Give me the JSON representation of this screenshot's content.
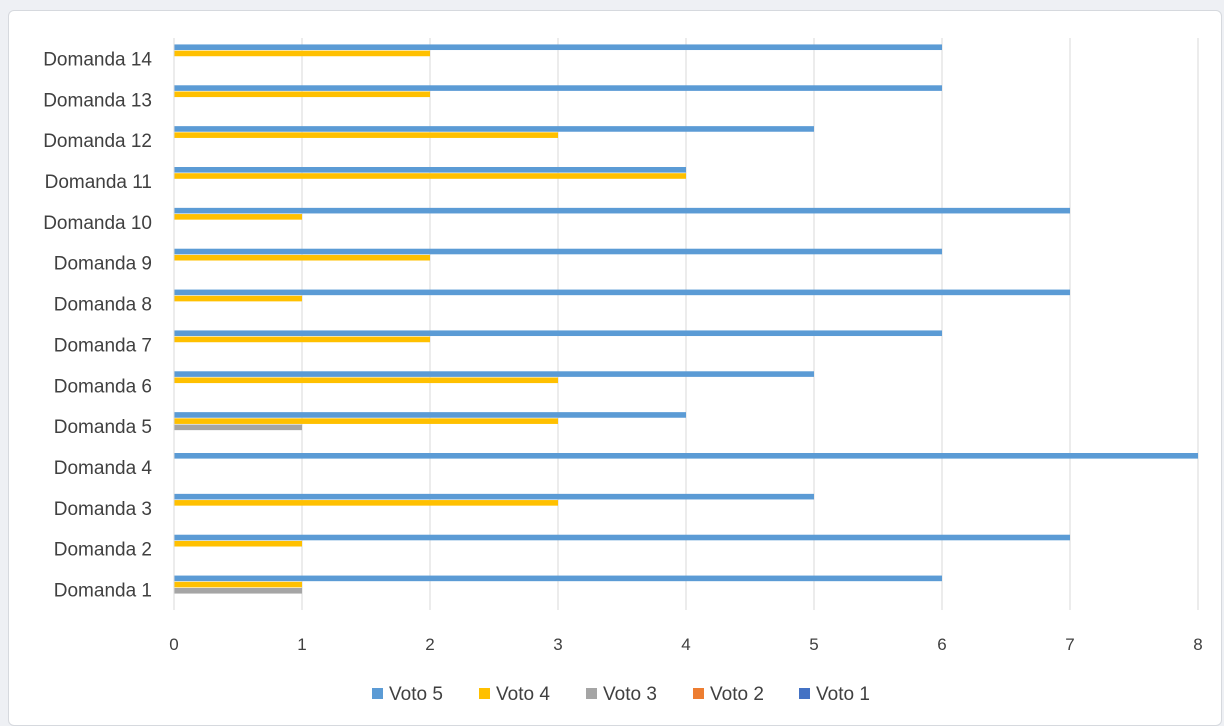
{
  "chart_data": {
    "type": "bar",
    "orientation": "horizontal",
    "categories": [
      "Domanda 1",
      "Domanda 2",
      "Domanda 3",
      "Domanda 4",
      "Domanda 5",
      "Domanda 6",
      "Domanda 7",
      "Domanda 8",
      "Domanda 9",
      "Domanda 10",
      "Domanda 11",
      "Domanda 12",
      "Domanda 13",
      "Domanda 14"
    ],
    "series": [
      {
        "name": "Voto 5",
        "color": "#5b9bd5",
        "values": [
          6,
          7,
          5,
          8,
          4,
          5,
          6,
          7,
          6,
          7,
          4,
          5,
          6,
          6
        ]
      },
      {
        "name": "Voto 4",
        "color": "#ffc000",
        "values": [
          1,
          1,
          3,
          0,
          3,
          3,
          2,
          1,
          2,
          1,
          4,
          3,
          2,
          2
        ]
      },
      {
        "name": "Voto 3",
        "color": "#a5a5a5",
        "values": [
          1,
          0,
          0,
          0,
          1,
          0,
          0,
          0,
          0,
          0,
          0,
          0,
          0,
          0
        ]
      },
      {
        "name": "Voto 2",
        "color": "#ed7d31",
        "values": [
          0,
          0,
          0,
          0,
          0,
          0,
          0,
          0,
          0,
          0,
          0,
          0,
          0,
          0
        ]
      },
      {
        "name": "Voto 1",
        "color": "#4472c4",
        "values": [
          0,
          0,
          0,
          0,
          0,
          0,
          0,
          0,
          0,
          0,
          0,
          0,
          0,
          0
        ]
      }
    ],
    "xlim": [
      0,
      8
    ],
    "xticks": [
      "0",
      "1",
      "2",
      "3",
      "4",
      "5",
      "6",
      "7",
      "8"
    ],
    "grid": "vertical",
    "legend": "bottom",
    "title": "",
    "xlabel": "",
    "ylabel": ""
  }
}
